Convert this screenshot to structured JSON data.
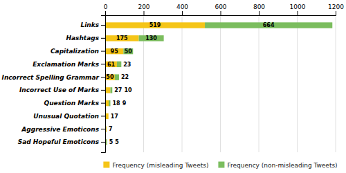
{
  "chart_data": {
    "type": "bar",
    "orientation": "horizontal",
    "stacked": true,
    "categories": [
      "Sad Hopeful Emoticons",
      "Aggressive Emoticons",
      "Unusual Quotation",
      "Question Marks",
      "Incorrect Use of Marks",
      "Incorrect Spelling Grammar",
      "Exclamation Marks",
      "Capitalization",
      "Hashtags",
      "Links"
    ],
    "series": [
      {
        "name": "Frequency (misleading Tweets)",
        "color": "#F5C518",
        "values": [
          5,
          7,
          17,
          18,
          27,
          50,
          61,
          95,
          175,
          519
        ]
      },
      {
        "name": "Frequency (non-misleading Tweets)",
        "color": "#7BBD5E",
        "values": [
          5,
          0,
          0,
          9,
          10,
          22,
          23,
          50,
          130,
          664
        ]
      }
    ],
    "xlim": [
      0,
      1200
    ],
    "xticks": [
      0,
      200,
      400,
      600,
      800,
      1000,
      1200
    ],
    "grid": true,
    "data_labels": true,
    "legend": "bottom"
  }
}
